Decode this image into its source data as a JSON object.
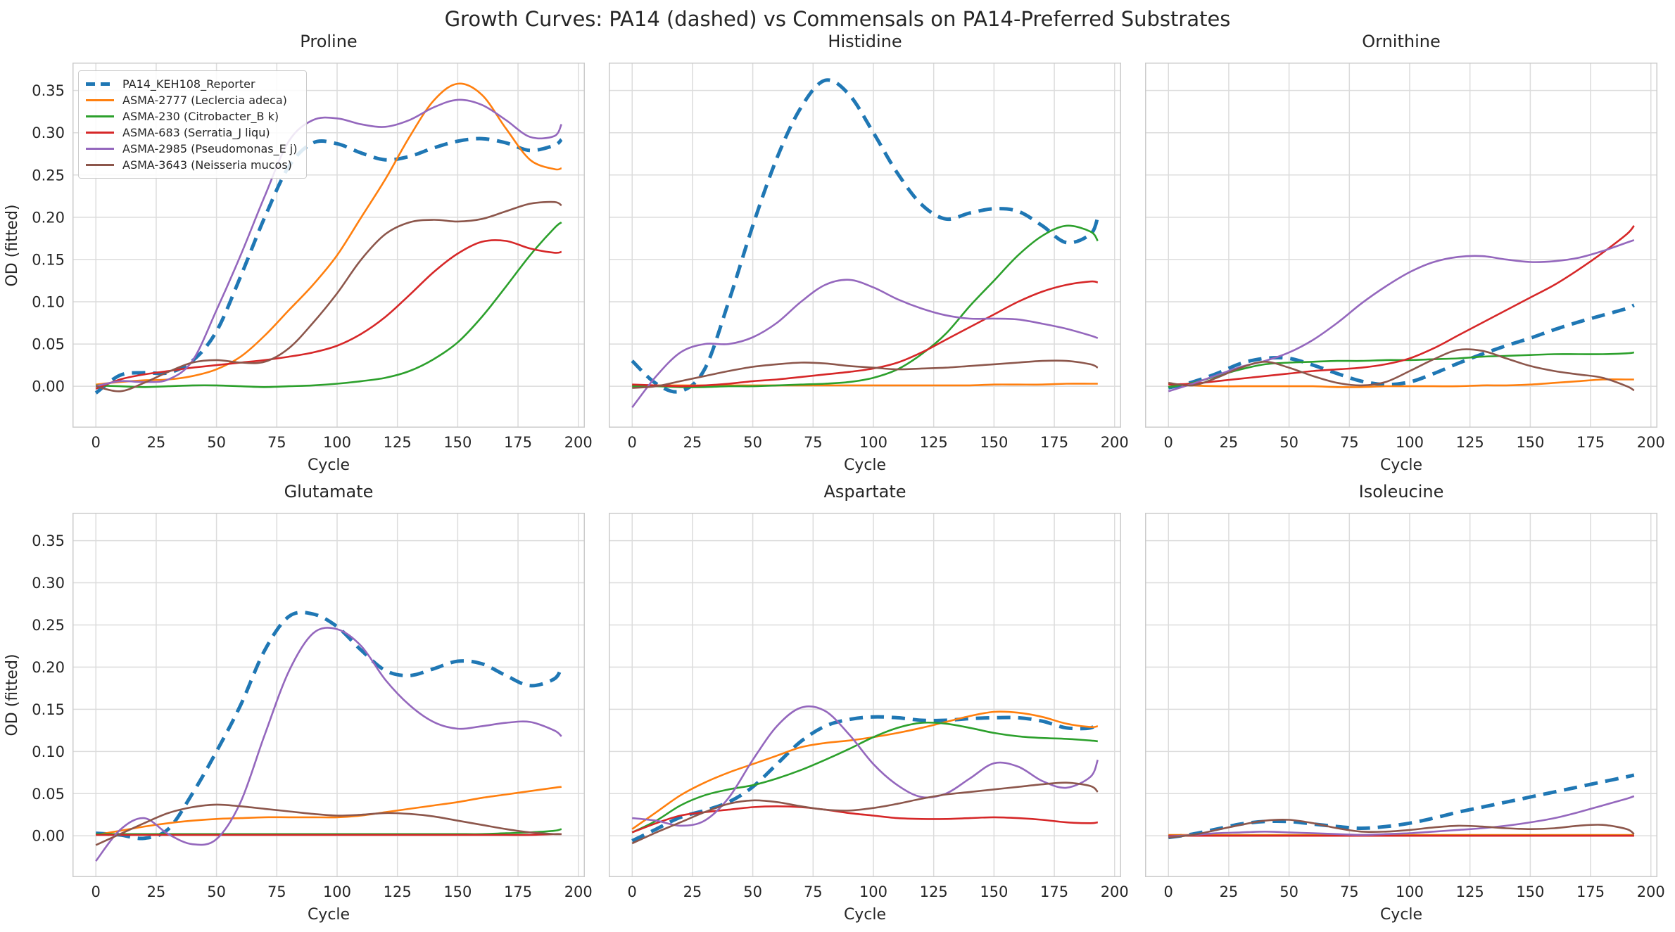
{
  "chart_data": {
    "type": "line",
    "suptitle": "Growth Curves: PA14 (dashed) vs Commensals on PA14-Preferred Substrates",
    "xlabel": "Cycle",
    "ylabel": "OD (fitted)",
    "xlim": [
      -9.7,
      202.7
    ],
    "ylim": [
      -0.049,
      0.383
    ],
    "xticks": [
      0,
      25,
      50,
      75,
      100,
      125,
      150,
      175,
      200
    ],
    "yticks": [
      0.0,
      0.05,
      0.1,
      0.15,
      0.2,
      0.25,
      0.3,
      0.35
    ],
    "grid": true,
    "legend_position": "upper left of first subplot",
    "colors": {
      "grid": "#dcdcdc",
      "spine": "#cbcbcb",
      "text": "#262626"
    },
    "series": [
      {
        "name": "PA14_KEH108_Reporter",
        "color": "#1f77b4",
        "dashed": true,
        "linewidth": 5
      },
      {
        "name": "ASMA-2777 (Leclercia adeca)",
        "color": "#ff7f0e",
        "dashed": false,
        "linewidth": 2.6
      },
      {
        "name": "ASMA-230 (Citrobacter_B k)",
        "color": "#2ca02c",
        "dashed": false,
        "linewidth": 2.6
      },
      {
        "name": "ASMA-683 (Serratia_J liqu)",
        "color": "#d62728",
        "dashed": false,
        "linewidth": 2.6
      },
      {
        "name": "ASMA-2985 (Pseudomonas_E j)",
        "color": "#9467bd",
        "dashed": false,
        "linewidth": 2.6
      },
      {
        "name": "ASMA-3643 (Neisseria mucos)",
        "color": "#8c564b",
        "dashed": false,
        "linewidth": 2.6
      }
    ],
    "x": [
      0,
      10,
      20,
      30,
      40,
      50,
      60,
      70,
      80,
      90,
      100,
      110,
      120,
      130,
      140,
      150,
      160,
      170,
      180,
      190,
      193
    ],
    "subplots": [
      {
        "title": "Proline",
        "values": [
          [
            -0.008,
            0.013,
            0.016,
            0.016,
            0.03,
            0.065,
            0.13,
            0.2,
            0.26,
            0.288,
            0.287,
            0.276,
            0.268,
            0.272,
            0.282,
            0.29,
            0.293,
            0.288,
            0.279,
            0.285,
            0.292
          ],
          [
            0.002,
            0.005,
            0.007,
            0.008,
            0.012,
            0.02,
            0.035,
            0.06,
            0.09,
            0.12,
            0.155,
            0.2,
            0.245,
            0.295,
            0.338,
            0.358,
            0.345,
            0.305,
            0.268,
            0.257,
            0.258
          ],
          [
            0.001,
            0.0,
            -0.001,
            0.0,
            0.001,
            0.001,
            0.0,
            -0.001,
            0.0,
            0.001,
            0.003,
            0.006,
            0.01,
            0.018,
            0.032,
            0.052,
            0.082,
            0.118,
            0.155,
            0.187,
            0.194
          ],
          [
            -0.003,
            0.008,
            0.014,
            0.018,
            0.022,
            0.025,
            0.028,
            0.031,
            0.035,
            0.04,
            0.048,
            0.062,
            0.082,
            0.108,
            0.135,
            0.157,
            0.171,
            0.172,
            0.163,
            0.158,
            0.159
          ],
          [
            0.0,
            0.006,
            0.005,
            0.008,
            0.03,
            0.09,
            0.155,
            0.225,
            0.29,
            0.315,
            0.317,
            0.31,
            0.307,
            0.315,
            0.33,
            0.339,
            0.333,
            0.315,
            0.295,
            0.296,
            0.31
          ],
          [
            0.0,
            -0.006,
            0.004,
            0.017,
            0.028,
            0.031,
            0.028,
            0.029,
            0.045,
            0.075,
            0.11,
            0.15,
            0.18,
            0.194,
            0.197,
            0.195,
            0.198,
            0.207,
            0.216,
            0.218,
            0.214
          ]
        ]
      },
      {
        "title": "Histidine",
        "values": [
          [
            0.03,
            0.003,
            -0.006,
            0.02,
            0.1,
            0.19,
            0.27,
            0.33,
            0.362,
            0.345,
            0.3,
            0.252,
            0.215,
            0.198,
            0.205,
            0.21,
            0.207,
            0.19,
            0.17,
            0.18,
            0.2
          ],
          [
            0.001,
            0.001,
            0.001,
            0.001,
            0.001,
            0.001,
            0.001,
            0.001,
            0.001,
            0.001,
            0.001,
            0.001,
            0.001,
            0.001,
            0.001,
            0.002,
            0.002,
            0.002,
            0.003,
            0.003,
            0.003
          ],
          [
            0.0,
            0.0,
            -0.001,
            -0.001,
            0.0,
            0.0,
            0.001,
            0.002,
            0.003,
            0.005,
            0.01,
            0.02,
            0.038,
            0.062,
            0.095,
            0.125,
            0.155,
            0.178,
            0.19,
            0.183,
            0.172
          ],
          [
            0.002,
            0.001,
            0.0,
            0.001,
            0.003,
            0.006,
            0.008,
            0.011,
            0.014,
            0.017,
            0.021,
            0.028,
            0.04,
            0.055,
            0.07,
            0.085,
            0.1,
            0.112,
            0.12,
            0.124,
            0.123
          ],
          [
            -0.025,
            0.012,
            0.04,
            0.05,
            0.05,
            0.058,
            0.075,
            0.1,
            0.12,
            0.126,
            0.117,
            0.103,
            0.092,
            0.084,
            0.08,
            0.08,
            0.079,
            0.074,
            0.068,
            0.06,
            0.057
          ],
          [
            -0.002,
            0.0,
            0.006,
            0.012,
            0.018,
            0.023,
            0.026,
            0.028,
            0.027,
            0.024,
            0.022,
            0.02,
            0.021,
            0.022,
            0.024,
            0.026,
            0.028,
            0.03,
            0.03,
            0.026,
            0.022
          ]
        ]
      },
      {
        "title": "Ornithine",
        "values": [
          [
            -0.002,
            0.005,
            0.015,
            0.027,
            0.033,
            0.033,
            0.025,
            0.015,
            0.006,
            0.002,
            0.005,
            0.015,
            0.027,
            0.038,
            0.048,
            0.057,
            0.067,
            0.076,
            0.084,
            0.092,
            0.096
          ],
          [
            0.003,
            0.001,
            0.0,
            0.0,
            0.0,
            0.0,
            0.0,
            -0.001,
            -0.001,
            0.0,
            0.0,
            0.0,
            0.0,
            0.001,
            0.001,
            0.002,
            0.004,
            0.006,
            0.008,
            0.008,
            0.008
          ],
          [
            -0.001,
            0.004,
            0.012,
            0.02,
            0.026,
            0.028,
            0.029,
            0.03,
            0.03,
            0.031,
            0.031,
            0.032,
            0.033,
            0.035,
            0.036,
            0.037,
            0.038,
            0.038,
            0.038,
            0.039,
            0.04
          ],
          [
            0.002,
            0.003,
            0.006,
            0.009,
            0.012,
            0.015,
            0.018,
            0.02,
            0.022,
            0.026,
            0.033,
            0.045,
            0.06,
            0.075,
            0.09,
            0.105,
            0.12,
            0.138,
            0.158,
            0.18,
            0.19
          ],
          [
            -0.006,
            0.003,
            0.013,
            0.023,
            0.03,
            0.04,
            0.055,
            0.075,
            0.098,
            0.118,
            0.135,
            0.147,
            0.153,
            0.154,
            0.15,
            0.147,
            0.148,
            0.152,
            0.16,
            0.17,
            0.173
          ],
          [
            0.004,
            0.001,
            0.01,
            0.022,
            0.029,
            0.022,
            0.012,
            0.004,
            0.001,
            0.005,
            0.018,
            0.032,
            0.043,
            0.042,
            0.033,
            0.024,
            0.018,
            0.014,
            0.01,
            0.0,
            -0.005
          ]
        ]
      },
      {
        "title": "Glutamate",
        "values": [
          [
            0.003,
            0.001,
            -0.003,
            0.008,
            0.05,
            0.1,
            0.155,
            0.22,
            0.26,
            0.263,
            0.248,
            0.22,
            0.196,
            0.19,
            0.198,
            0.207,
            0.204,
            0.19,
            0.178,
            0.186,
            0.2
          ],
          [
            0.001,
            0.006,
            0.011,
            0.015,
            0.018,
            0.02,
            0.021,
            0.022,
            0.022,
            0.022,
            0.022,
            0.024,
            0.028,
            0.032,
            0.036,
            0.04,
            0.045,
            0.049,
            0.053,
            0.057,
            0.058
          ],
          [
            0.002,
            0.002,
            0.002,
            0.002,
            0.002,
            0.002,
            0.002,
            0.002,
            0.002,
            0.002,
            0.002,
            0.002,
            0.002,
            0.002,
            0.002,
            0.002,
            0.002,
            0.003,
            0.004,
            0.006,
            0.008
          ],
          [
            0.001,
            0.001,
            0.001,
            0.001,
            0.001,
            0.001,
            0.001,
            0.001,
            0.001,
            0.001,
            0.001,
            0.001,
            0.001,
            0.001,
            0.001,
            0.001,
            0.001,
            0.001,
            0.001,
            0.002,
            0.002
          ],
          [
            -0.03,
            0.007,
            0.021,
            0.002,
            -0.01,
            -0.004,
            0.04,
            0.12,
            0.195,
            0.24,
            0.245,
            0.225,
            0.185,
            0.155,
            0.135,
            0.127,
            0.13,
            0.134,
            0.135,
            0.125,
            0.118
          ],
          [
            -0.011,
            0.002,
            0.015,
            0.027,
            0.034,
            0.037,
            0.035,
            0.032,
            0.029,
            0.026,
            0.024,
            0.025,
            0.027,
            0.026,
            0.023,
            0.018,
            0.013,
            0.008,
            0.004,
            0.002,
            0.002
          ]
        ]
      },
      {
        "title": "Aspartate",
        "values": [
          [
            -0.006,
            0.008,
            0.022,
            0.03,
            0.04,
            0.058,
            0.085,
            0.112,
            0.13,
            0.138,
            0.141,
            0.14,
            0.137,
            0.137,
            0.139,
            0.14,
            0.14,
            0.136,
            0.128,
            0.128,
            0.135
          ],
          [
            0.008,
            0.028,
            0.048,
            0.063,
            0.075,
            0.085,
            0.095,
            0.105,
            0.11,
            0.113,
            0.117,
            0.122,
            0.128,
            0.135,
            0.142,
            0.147,
            0.146,
            0.141,
            0.133,
            0.129,
            0.13
          ],
          [
            0.004,
            0.018,
            0.036,
            0.048,
            0.055,
            0.06,
            0.068,
            0.078,
            0.09,
            0.103,
            0.117,
            0.128,
            0.134,
            0.133,
            0.128,
            0.122,
            0.118,
            0.116,
            0.115,
            0.113,
            0.112
          ],
          [
            0.004,
            0.015,
            0.024,
            0.028,
            0.031,
            0.034,
            0.035,
            0.034,
            0.031,
            0.027,
            0.024,
            0.021,
            0.02,
            0.02,
            0.021,
            0.022,
            0.021,
            0.019,
            0.016,
            0.015,
            0.016
          ],
          [
            0.021,
            0.018,
            0.012,
            0.018,
            0.045,
            0.09,
            0.13,
            0.152,
            0.148,
            0.12,
            0.085,
            0.06,
            0.046,
            0.05,
            0.068,
            0.086,
            0.082,
            0.065,
            0.057,
            0.07,
            0.09
          ],
          [
            -0.009,
            0.004,
            0.016,
            0.028,
            0.038,
            0.042,
            0.04,
            0.035,
            0.031,
            0.03,
            0.033,
            0.038,
            0.044,
            0.049,
            0.052,
            0.055,
            0.058,
            0.061,
            0.063,
            0.059,
            0.052
          ]
        ]
      },
      {
        "title": "Isoleucine",
        "values": [
          [
            -0.002,
            0.002,
            0.008,
            0.014,
            0.017,
            0.017,
            0.014,
            0.011,
            0.009,
            0.011,
            0.015,
            0.021,
            0.028,
            0.034,
            0.04,
            0.046,
            0.052,
            0.058,
            0.064,
            0.07,
            0.072
          ],
          [
            0.001,
            0.001,
            0.001,
            0.001,
            0.001,
            0.001,
            0.001,
            0.001,
            0.001,
            0.001,
            0.001,
            0.001,
            0.001,
            0.001,
            0.001,
            0.001,
            0.001,
            0.001,
            0.001,
            0.001,
            0.001
          ],
          [
            0.0,
            0.0,
            0.0,
            0.0,
            0.0,
            0.0,
            0.0,
            0.0,
            0.0,
            0.0,
            0.0,
            0.0,
            0.0,
            0.0,
            0.0,
            0.0,
            0.0,
            0.0,
            0.0,
            0.0,
            0.0
          ],
          [
            0.0,
            0.0,
            0.0,
            0.0,
            0.0,
            0.0,
            0.0,
            0.0,
            0.0,
            0.0,
            0.0,
            0.0,
            0.0,
            0.0,
            0.0,
            0.0,
            0.0,
            0.0,
            0.0,
            0.0,
            0.0
          ],
          [
            -0.001,
            0.001,
            0.003,
            0.004,
            0.005,
            0.004,
            0.003,
            0.002,
            0.001,
            0.002,
            0.003,
            0.005,
            0.007,
            0.009,
            0.012,
            0.016,
            0.021,
            0.028,
            0.036,
            0.044,
            0.047
          ],
          [
            -0.002,
            0.001,
            0.007,
            0.013,
            0.018,
            0.019,
            0.015,
            0.009,
            0.005,
            0.005,
            0.007,
            0.01,
            0.012,
            0.011,
            0.009,
            0.008,
            0.009,
            0.012,
            0.013,
            0.008,
            0.002
          ]
        ]
      }
    ]
  }
}
